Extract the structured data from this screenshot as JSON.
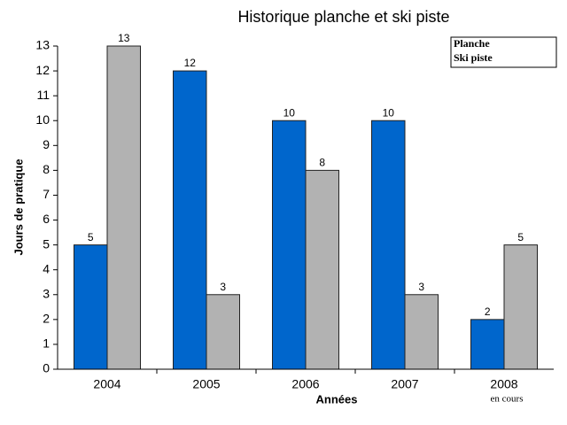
{
  "chart_data": {
    "type": "bar",
    "title": "Historique planche et ski piste",
    "y_label": "Jours de pratique",
    "x_label": "Années",
    "annotation": "en cours",
    "categories": [
      "2004",
      "2005",
      "2006",
      "2007",
      "2008"
    ],
    "series": [
      {
        "name": "Planche",
        "color": "#0066cc",
        "values": [
          5,
          12,
          10,
          10,
          2
        ]
      },
      {
        "name": "Ski piste",
        "color": "#b2b2b2",
        "values": [
          13,
          3,
          8,
          3,
          5
        ]
      }
    ],
    "legend_text_colors": [
      "#1f5fa8",
      "#444444"
    ],
    "ylim": [
      0,
      13
    ],
    "yticks": [
      0,
      1,
      2,
      3,
      4,
      5,
      6,
      7,
      8,
      9,
      10,
      11,
      12,
      13
    ],
    "legend": "top-right"
  }
}
